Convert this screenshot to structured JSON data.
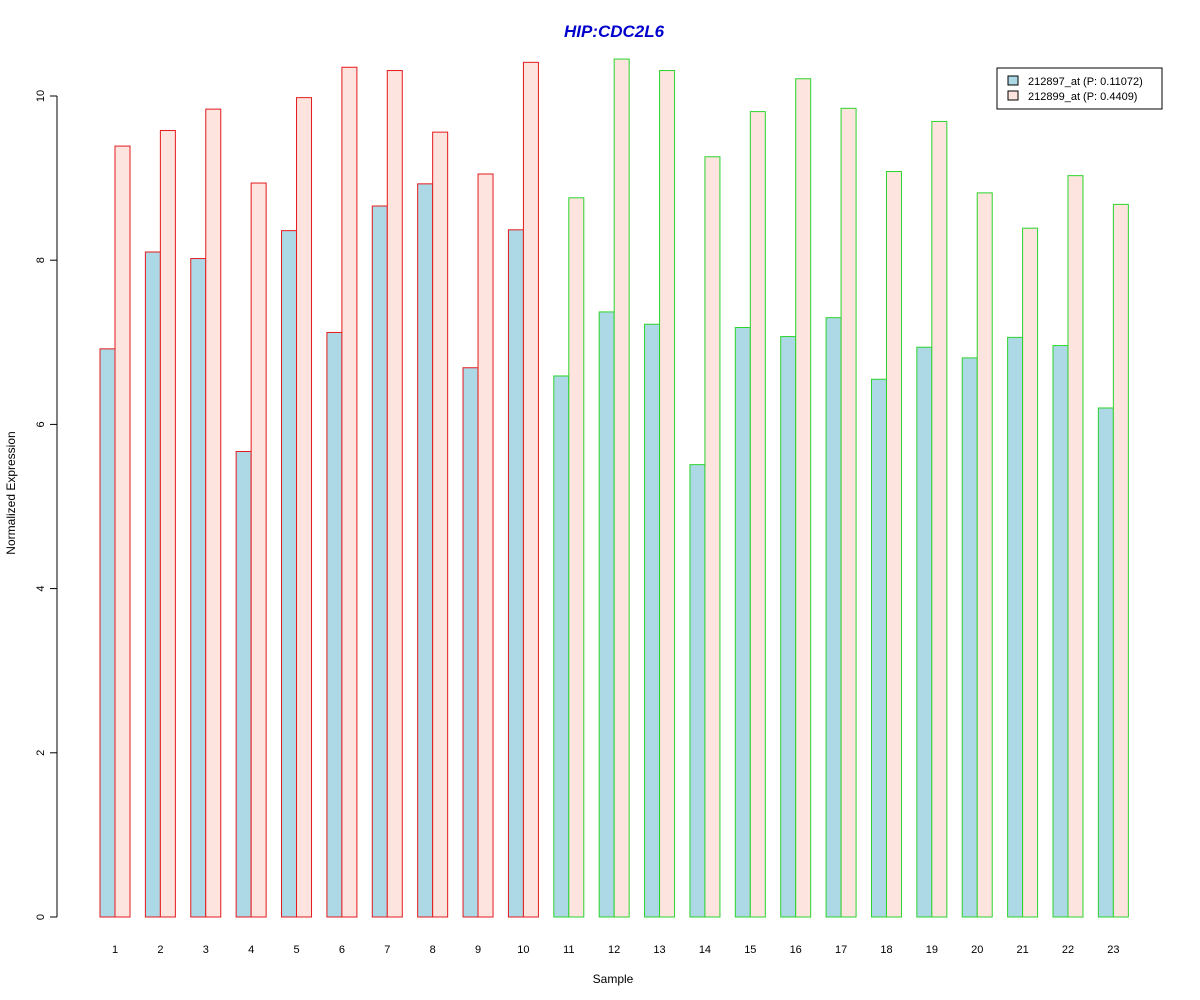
{
  "chart_data": {
    "type": "bar",
    "title": "HIP:CDC2L6",
    "xlabel": "Sample",
    "ylabel": "Normalized Expression",
    "categories": [
      "1",
      "2",
      "3",
      "4",
      "5",
      "6",
      "7",
      "8",
      "9",
      "10",
      "11",
      "12",
      "13",
      "14",
      "15",
      "16",
      "17",
      "18",
      "19",
      "20",
      "21",
      "22",
      "23"
    ],
    "series": [
      {
        "name": "212897_at (P: 0.11072)",
        "fill": "#add8e6",
        "values": [
          6.92,
          8.1,
          8.02,
          5.67,
          8.36,
          7.12,
          8.66,
          8.93,
          6.69,
          8.37,
          6.59,
          7.37,
          7.22,
          5.51,
          7.18,
          7.07,
          7.3,
          6.55,
          6.94,
          6.81,
          7.06,
          6.96,
          6.2
        ]
      },
      {
        "name": "212899_at (P: 0.4409)",
        "fill": "#fde4df",
        "values": [
          9.39,
          9.58,
          9.84,
          8.94,
          9.98,
          10.35,
          10.31,
          9.56,
          9.05,
          10.41,
          8.76,
          10.45,
          10.31,
          9.26,
          9.81,
          10.21,
          9.85,
          9.08,
          9.69,
          8.82,
          8.39,
          9.03,
          8.68
        ]
      }
    ],
    "group_border_colors": [
      "#e41a1c",
      "#e41a1c",
      "#e41a1c",
      "#e41a1c",
      "#e41a1c",
      "#e41a1c",
      "#e41a1c",
      "#e41a1c",
      "#e41a1c",
      "#e41a1c",
      "#2bd42b",
      "#2bd42b",
      "#2bd42b",
      "#2bd42b",
      "#2bd42b",
      "#2bd42b",
      "#2bd42b",
      "#2bd42b",
      "#2bd42b",
      "#2bd42b",
      "#2bd42b",
      "#2bd42b",
      "#2bd42b"
    ],
    "yticks": [
      "0",
      "2",
      "4",
      "6",
      "8",
      "10"
    ],
    "ylim": [
      0,
      10.5
    ],
    "grid": false,
    "legend_position": "top-right",
    "title_color": "#0000cd"
  }
}
